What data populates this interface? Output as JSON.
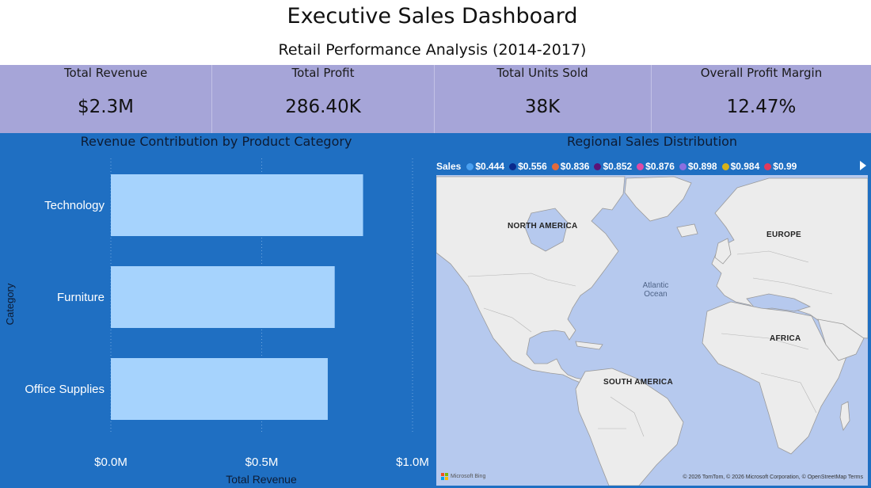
{
  "header": {
    "title": "Executive Sales Dashboard",
    "subtitle": "Retail Performance Analysis (2014-2017)"
  },
  "kpis": [
    {
      "label": "Total Revenue",
      "value": "$2.3M"
    },
    {
      "label": "Total Profit",
      "value": "286.40K"
    },
    {
      "label": "Total Units Sold",
      "value": "38K"
    },
    {
      "label": "Overall Profit Margin",
      "value": "12.47%"
    }
  ],
  "bar_panel": {
    "title": "Revenue Contribution by Product Category"
  },
  "map_panel": {
    "title": "Regional Sales Distribution",
    "legend_title": "Sales",
    "legend": [
      {
        "label": "$0.444",
        "color": "#4aa0f0"
      },
      {
        "label": "$0.556",
        "color": "#0a2a8c"
      },
      {
        "label": "$0.836",
        "color": "#e26a3c"
      },
      {
        "label": "$0.852",
        "color": "#5b1377"
      },
      {
        "label": "$0.876",
        "color": "#e04aa6"
      },
      {
        "label": "$0.898",
        "color": "#8b6fe0"
      },
      {
        "label": "$0.984",
        "color": "#d6b21a"
      },
      {
        "label": "$0.99",
        "color": "#e23a5c"
      }
    ],
    "labels": {
      "north_america": "NORTH AMERICA",
      "europe": "EUROPE",
      "africa": "AFRICA",
      "south_america": "SOUTH AMERICA",
      "ocean": "Atlantic\nOcean"
    },
    "logo_text": "Microsoft Bing",
    "attribution": "© 2026 TomTom, © 2026 Microsoft Corporation, © OpenStreetMap   Terms"
  },
  "colors": {
    "background": "#1f6fc2",
    "kpi_band": "#a6a5d8",
    "bar": "#a6d3fd",
    "map_land": "#ececec",
    "map_water": "#b6c9ee"
  },
  "chart_data": {
    "type": "bar",
    "orientation": "horizontal",
    "title": "Revenue Contribution by Product Category",
    "categories": [
      "Technology",
      "Furniture",
      "Office Supplies"
    ],
    "values": [
      836000,
      742000,
      719000
    ],
    "xlabel": "Total Revenue",
    "ylabel": "Category",
    "xlim": [
      0,
      1000000
    ],
    "x_ticks": [
      0,
      500000,
      1000000
    ],
    "x_tick_labels": [
      "$0.0M",
      "$0.5M",
      "$1.0M"
    ],
    "grid": true,
    "bar_color": "#a6d3fd"
  }
}
